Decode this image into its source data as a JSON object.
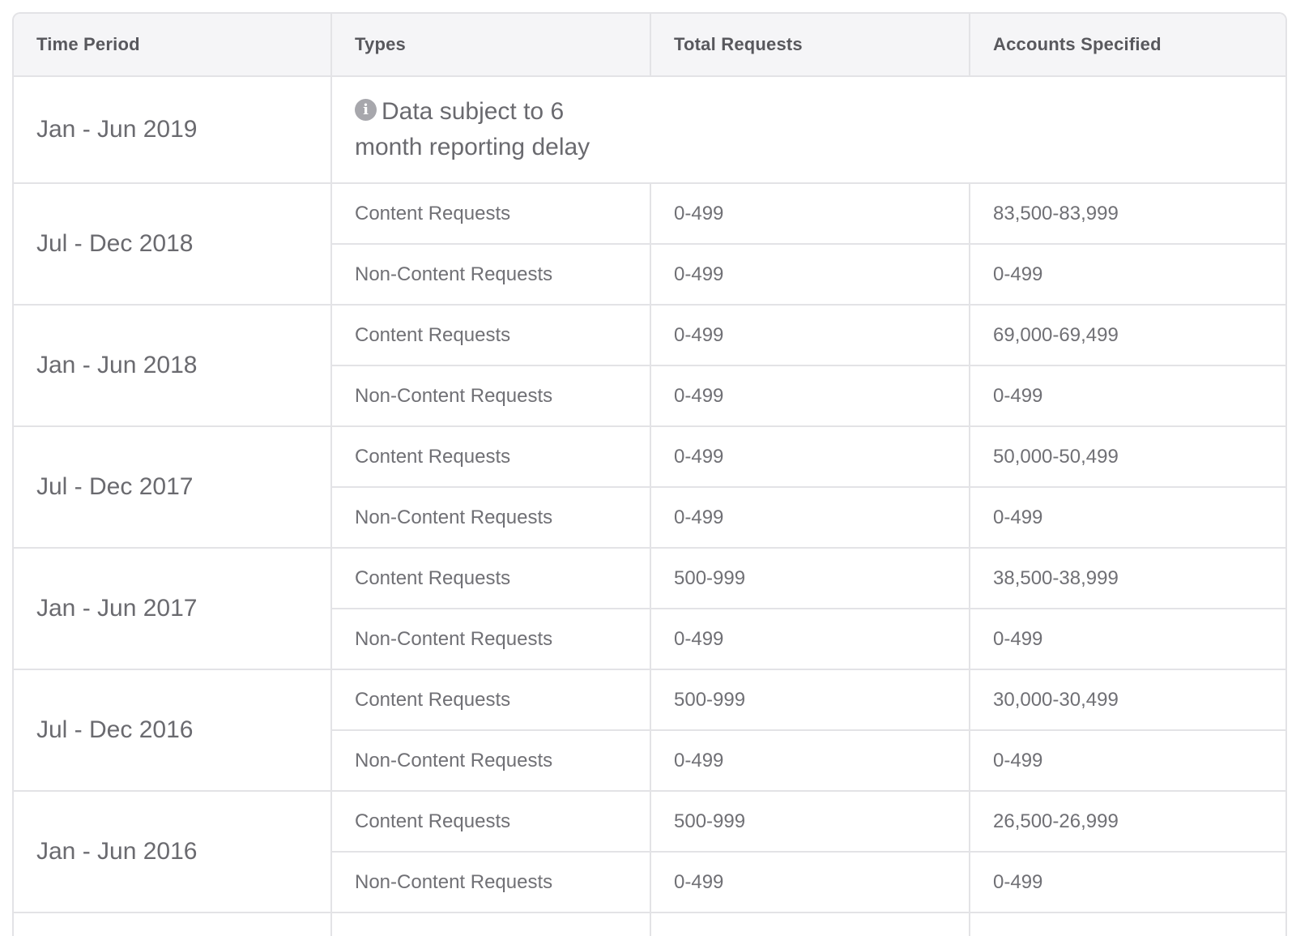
{
  "headers": {
    "time_period": "Time Period",
    "types": "Types",
    "total_requests": "Total Requests",
    "accounts_specified": "Accounts Specified"
  },
  "notice": {
    "icon": "info-icon",
    "text": "Data subject to 6 month reporting delay"
  },
  "rows": [
    {
      "period": "Jan - Jun 2019"
    },
    {
      "period": "Jul - Dec 2018",
      "entries": [
        {
          "type": "Content Requests",
          "total": "0-499",
          "accounts": "83,500-83,999"
        },
        {
          "type": "Non-Content Requests",
          "total": "0-499",
          "accounts": "0-499"
        }
      ]
    },
    {
      "period": "Jan - Jun 2018",
      "entries": [
        {
          "type": "Content Requests",
          "total": "0-499",
          "accounts": "69,000-69,499"
        },
        {
          "type": "Non-Content Requests",
          "total": "0-499",
          "accounts": "0-499"
        }
      ]
    },
    {
      "period": "Jul - Dec 2017",
      "entries": [
        {
          "type": "Content Requests",
          "total": "0-499",
          "accounts": "50,000-50,499"
        },
        {
          "type": "Non-Content Requests",
          "total": "0-499",
          "accounts": "0-499"
        }
      ]
    },
    {
      "period": "Jan - Jun 2017",
      "entries": [
        {
          "type": "Content Requests",
          "total": "500-999",
          "accounts": "38,500-38,999"
        },
        {
          "type": "Non-Content Requests",
          "total": "0-499",
          "accounts": "0-499"
        }
      ]
    },
    {
      "period": "Jul - Dec 2016",
      "entries": [
        {
          "type": "Content Requests",
          "total": "500-999",
          "accounts": "30,000-30,499"
        },
        {
          "type": "Non-Content Requests",
          "total": "0-499",
          "accounts": "0-499"
        }
      ]
    },
    {
      "period": "Jan - Jun 2016",
      "entries": [
        {
          "type": "Content Requests",
          "total": "500-999",
          "accounts": "26,500-26,999"
        },
        {
          "type": "Non-Content Requests",
          "total": "0-499",
          "accounts": "0-499"
        }
      ]
    }
  ]
}
